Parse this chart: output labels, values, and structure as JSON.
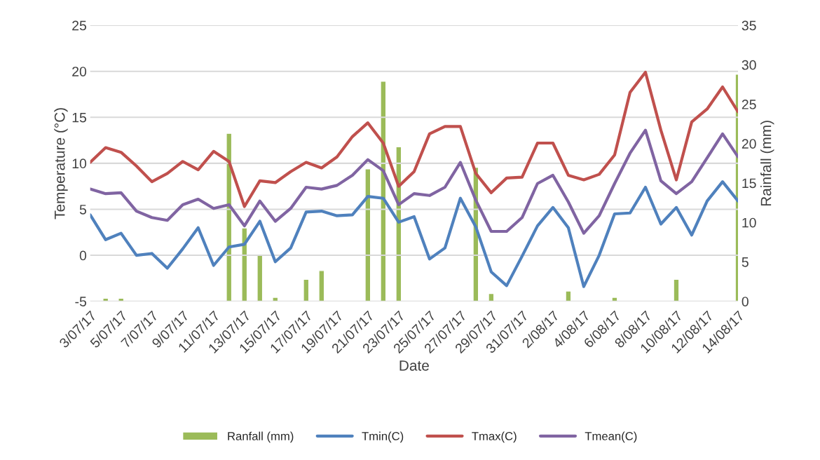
{
  "chart_data": {
    "type": "line",
    "xlabel": "Date",
    "ylabel": "Temperature (°C)",
    "y2label": "Rainfall (mm)",
    "categories": [
      "3/07/17",
      null,
      "5/07/17",
      null,
      "7/07/17",
      null,
      "9/07/17",
      null,
      "11/07/17",
      null,
      "13/07/17",
      null,
      "15/07/17",
      null,
      "17/07/17",
      null,
      "19/07/17",
      null,
      "21/07/17",
      null,
      "23/07/17",
      null,
      "25/07/17",
      null,
      "27/07/17",
      null,
      "29/07/17",
      null,
      "31/07/17",
      null,
      "2/08/17",
      null,
      "4/08/17",
      null,
      "6/08/17",
      null,
      "8/08/17",
      null,
      "10/08/17",
      null,
      "12/08/17",
      null,
      "14/08/17"
    ],
    "series": [
      {
        "name": "Ranfall (mm)",
        "type": "bar",
        "axis": "y2",
        "color": "#9bbb59",
        "values": [
          null,
          0.4,
          0.4,
          null,
          null,
          null,
          null,
          null,
          null,
          21.3,
          9.3,
          6.0,
          0.5,
          null,
          2.8,
          3.9,
          null,
          null,
          16.8,
          27.9,
          19.6,
          null,
          null,
          null,
          null,
          17.0,
          1.0,
          null,
          null,
          null,
          null,
          1.3,
          null,
          null,
          0.5,
          null,
          null,
          null,
          2.8,
          null,
          null,
          null,
          28.8
        ]
      },
      {
        "name": "Tmin(C)",
        "color": "#4f81bd",
        "values": [
          4.4,
          1.7,
          2.4,
          0.0,
          0.2,
          -1.4,
          0.7,
          3.0,
          -1.1,
          0.9,
          1.2,
          3.7,
          -0.7,
          0.8,
          4.7,
          4.8,
          4.3,
          4.4,
          6.4,
          6.2,
          3.6,
          4.2,
          -0.4,
          0.8,
          6.2,
          3.1,
          -1.8,
          -3.3,
          -0.1,
          3.2,
          5.2,
          3.0,
          -3.4,
          0.0,
          4.5,
          4.6,
          7.4,
          3.4,
          5.2,
          2.2,
          5.9,
          8.0,
          5.9
        ]
      },
      {
        "name": "Tmax(C)",
        "color": "#c0504d",
        "values": [
          10.1,
          11.7,
          11.2,
          9.7,
          8.0,
          8.9,
          10.2,
          9.3,
          11.3,
          10.2,
          5.3,
          8.1,
          7.9,
          9.1,
          10.1,
          9.5,
          10.7,
          12.9,
          14.4,
          12.2,
          7.5,
          9.1,
          13.2,
          14.0,
          14.0,
          8.9,
          6.8,
          8.4,
          8.5,
          12.2,
          12.2,
          8.7,
          8.2,
          8.8,
          10.9,
          17.7,
          19.9,
          13.6,
          8.2,
          14.5,
          15.9,
          18.3,
          15.6
        ]
      },
      {
        "name": "Tmean(C)",
        "color": "#8064a2",
        "values": [
          7.2,
          6.7,
          6.8,
          4.8,
          4.1,
          3.8,
          5.5,
          6.1,
          5.1,
          5.5,
          3.2,
          5.9,
          3.7,
          5.1,
          7.4,
          7.2,
          7.6,
          8.7,
          10.4,
          9.2,
          5.5,
          6.7,
          6.5,
          7.4,
          10.1,
          6.0,
          2.6,
          2.6,
          4.1,
          7.8,
          8.7,
          5.8,
          2.4,
          4.3,
          7.8,
          11.1,
          13.6,
          8.1,
          6.7,
          8.0,
          10.6,
          13.2,
          10.7
        ]
      }
    ],
    "ylim": [
      -5,
      25
    ],
    "yticks": [
      -5,
      0,
      5,
      10,
      15,
      20,
      25
    ],
    "y2lim": [
      0,
      35
    ],
    "y2ticks": [
      0,
      5,
      10,
      15,
      20,
      25,
      30,
      35
    ],
    "grid": "y",
    "legend": "bottom",
    "marker": "none",
    "line_style": "solid"
  }
}
